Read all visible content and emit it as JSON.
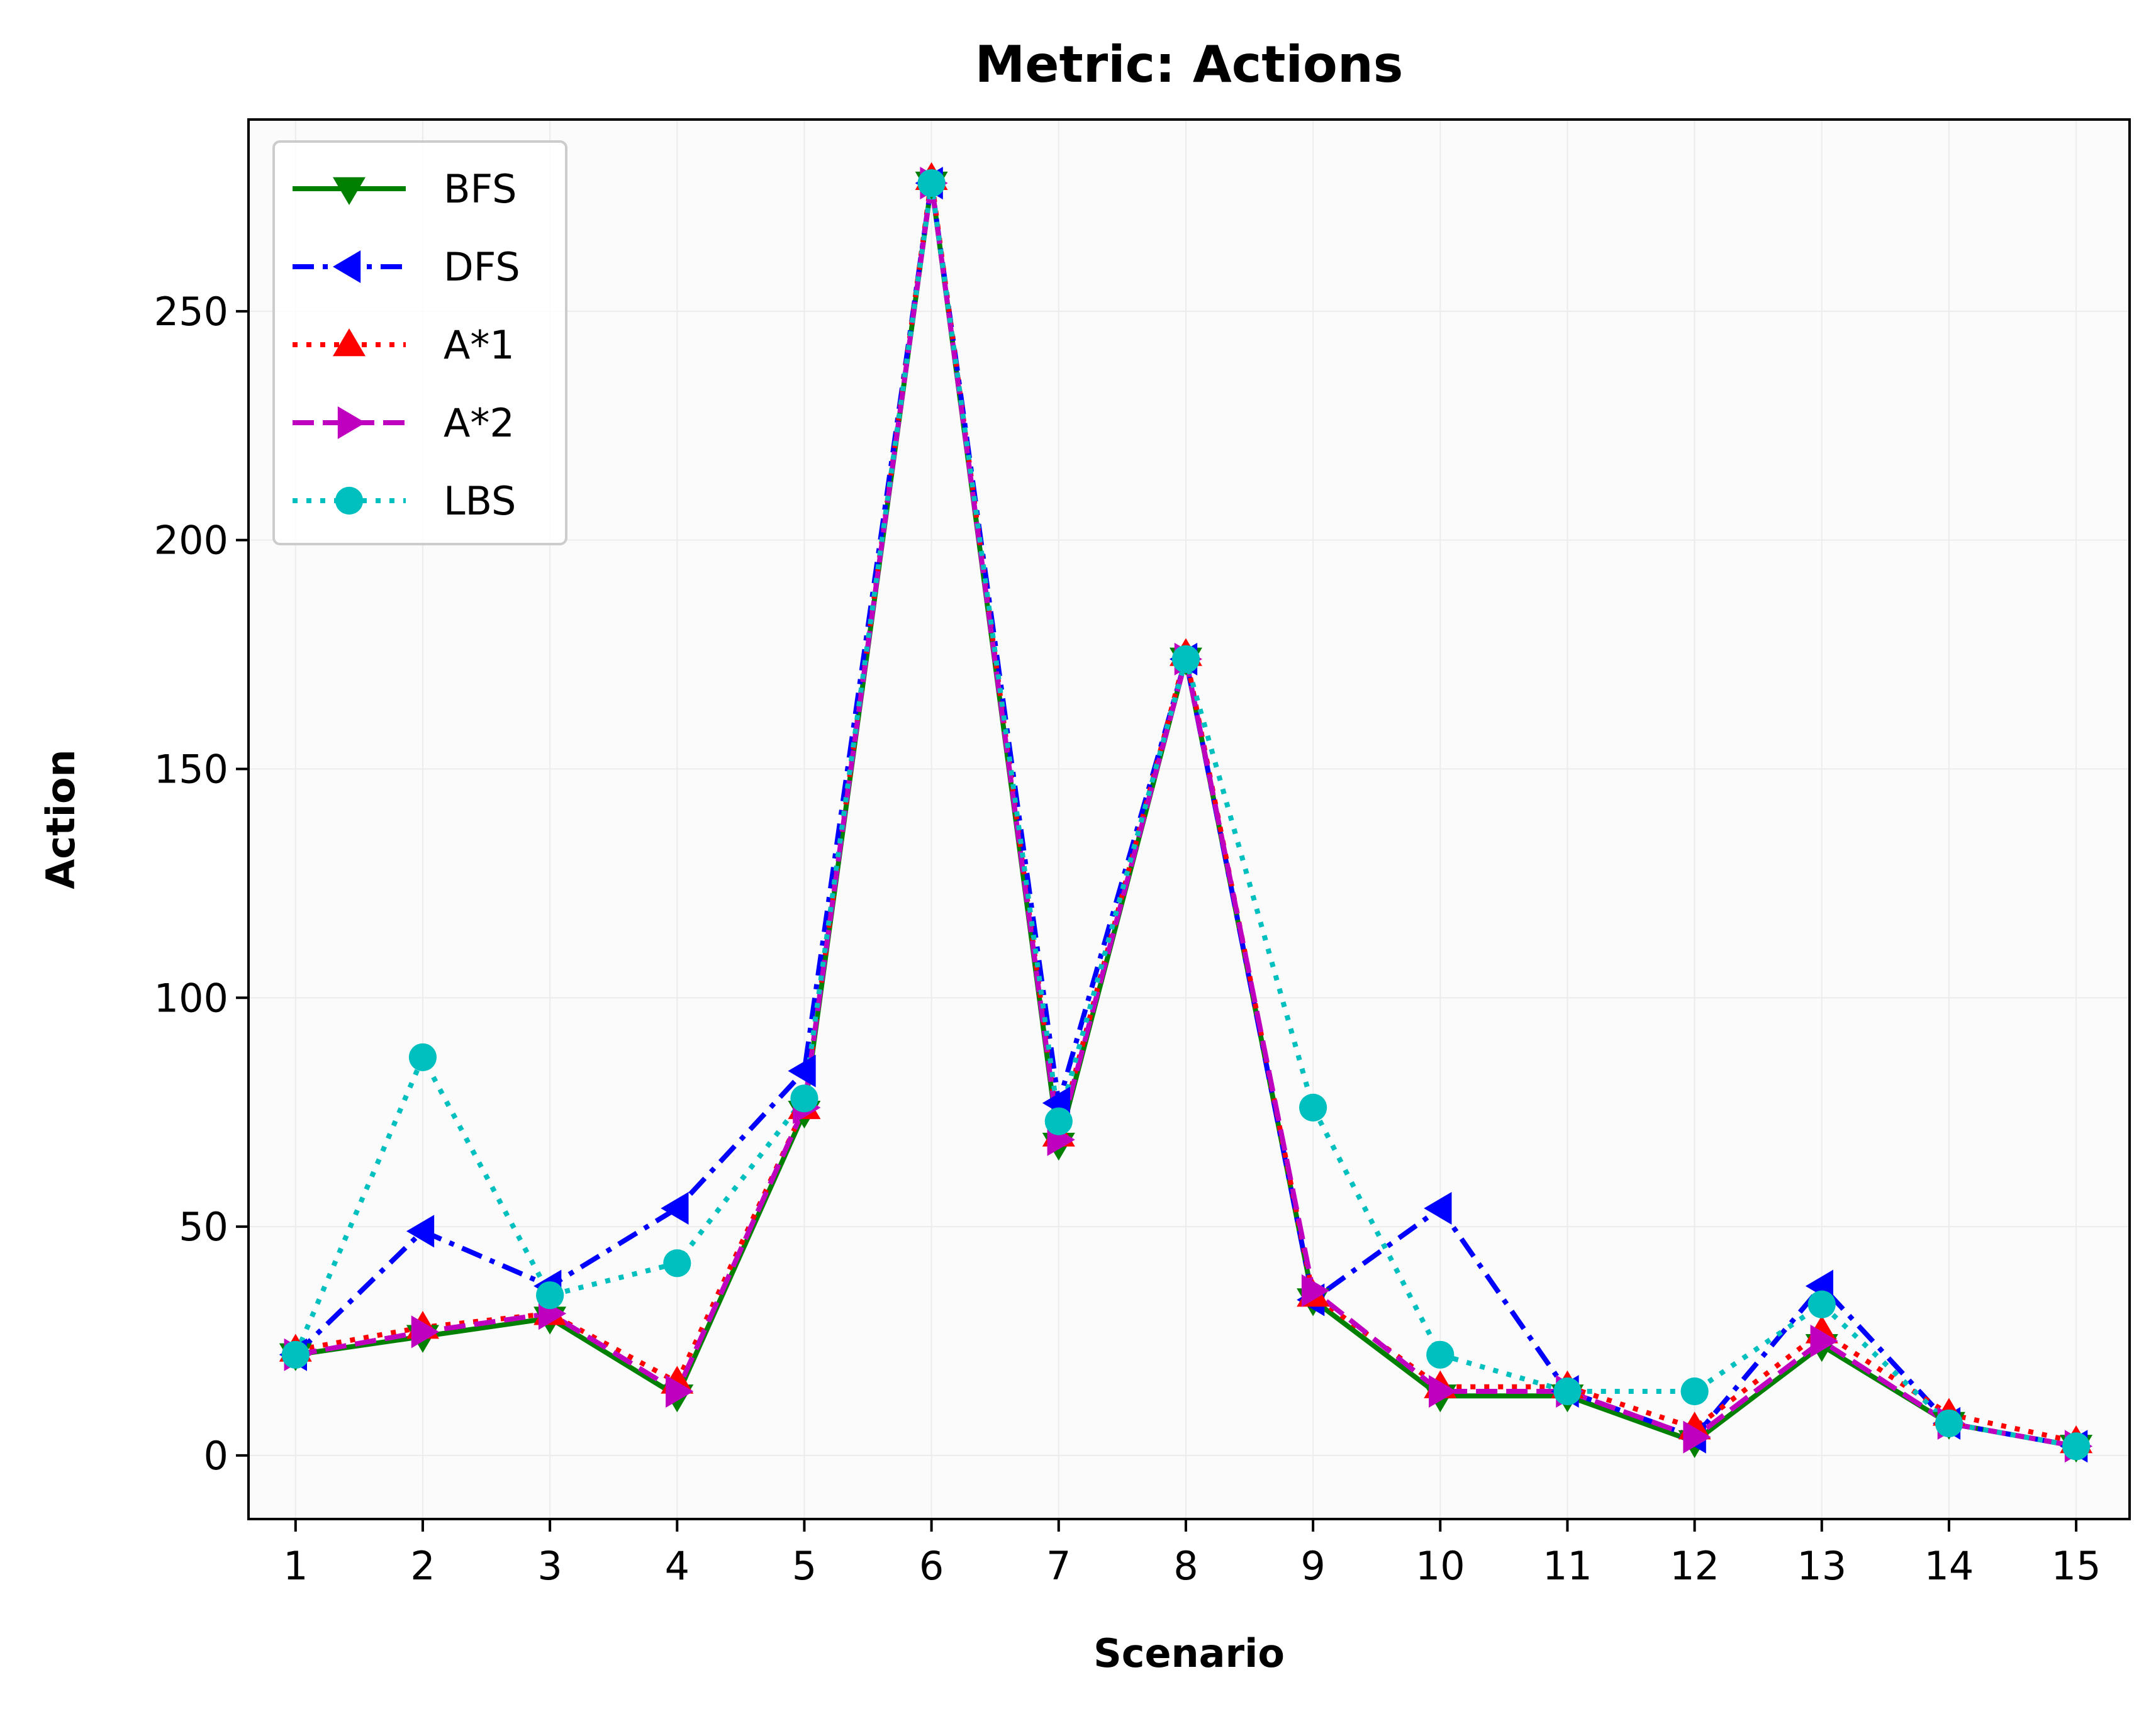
{
  "chart_data": {
    "type": "line",
    "title": "Metric: Actions",
    "xlabel": "Scenario",
    "ylabel": "Action",
    "categories": [
      "1",
      "2",
      "3",
      "4",
      "5",
      "6",
      "7",
      "8",
      "9",
      "10",
      "11",
      "12",
      "13",
      "14",
      "15"
    ],
    "x": [
      1,
      2,
      3,
      4,
      5,
      6,
      7,
      8,
      9,
      10,
      11,
      12,
      13,
      14,
      15
    ],
    "xlim": [
      0.63,
      15.42
    ],
    "ylim": [
      -13.9,
      291.9
    ],
    "yticks": [
      0,
      50,
      100,
      150,
      200,
      250
    ],
    "yticklabels": [
      "0",
      "50",
      "100",
      "150",
      "200",
      "250"
    ],
    "grid": true,
    "legend_position": "top-left",
    "series": [
      {
        "name": "BFS",
        "color": "#008000",
        "linestyle": "solid",
        "marker": "triangle-down",
        "values": [
          22,
          26,
          30,
          13,
          75,
          278,
          68,
          174,
          34,
          13,
          13,
          3,
          24,
          7,
          2
        ]
      },
      {
        "name": "DFS",
        "color": "#0000ff",
        "linestyle": "dashdot",
        "marker": "triangle-left",
        "values": [
          22,
          49,
          37,
          54,
          84,
          278,
          77,
          174,
          34,
          54,
          14,
          4,
          37,
          7,
          2
        ]
      },
      {
        "name": "A*1",
        "color": "#ff0000",
        "linestyle": "dotted",
        "marker": "triangle-up",
        "values": [
          23,
          28,
          31,
          16,
          76,
          279,
          70,
          175,
          35,
          15,
          15,
          6,
          27,
          9,
          3
        ]
      },
      {
        "name": "A*2",
        "color": "#bf00bf",
        "linestyle": "dashed",
        "marker": "triangle-right",
        "values": [
          22,
          27,
          31,
          14,
          76,
          278,
          69,
          174,
          36,
          14,
          14,
          4,
          25,
          7,
          2
        ]
      },
      {
        "name": "LBS",
        "color": "#00bfbf",
        "linestyle": "dotted",
        "marker": "circle",
        "values": [
          22,
          87,
          35,
          42,
          78,
          278,
          73,
          174,
          76,
          22,
          14,
          14,
          33,
          7,
          2
        ]
      }
    ]
  }
}
